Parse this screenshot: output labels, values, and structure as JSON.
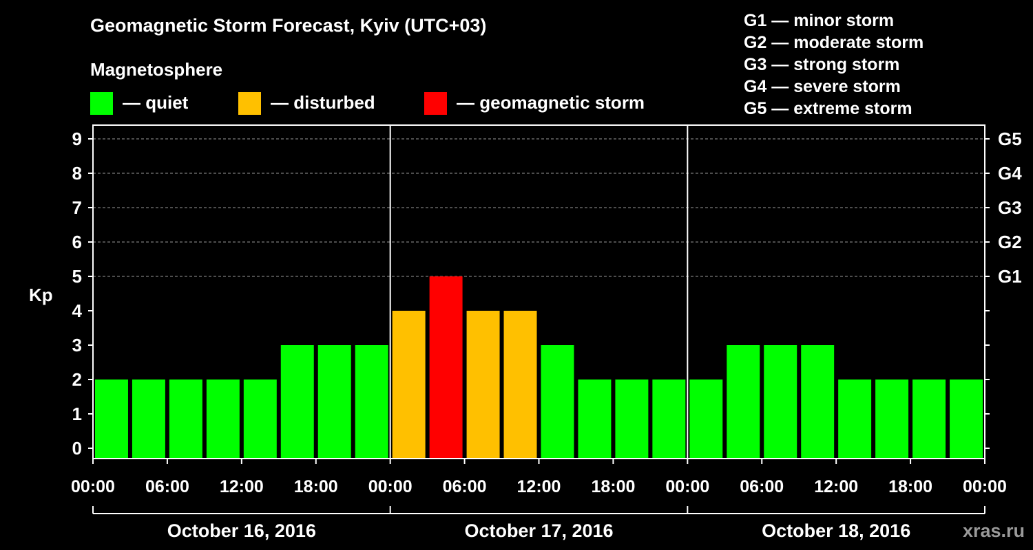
{
  "header": {
    "title": "Geomagnetic Storm Forecast, Kyiv (UTC+03)",
    "subtitle": "Magnetosphere"
  },
  "legend": [
    {
      "label": "— quiet",
      "color": "#00ff00"
    },
    {
      "label": "— disturbed",
      "color": "#ffc000"
    },
    {
      "label": "— geomagnetic storm",
      "color": "#ff0000"
    }
  ],
  "storm_scale": [
    "G1 — minor storm",
    "G2 — moderate storm",
    "G3 — strong storm",
    "G4 — severe storm",
    "G5 — extreme storm"
  ],
  "watermark": "xras.ru",
  "chart_data": {
    "type": "bar",
    "ylabel": "Kp",
    "ylim": [
      0,
      9
    ],
    "y_ticks": [
      "0",
      "1",
      "2",
      "3",
      "4",
      "5",
      "6",
      "7",
      "8",
      "9"
    ],
    "right_axis_ticks": [
      {
        "kp": 5,
        "label": "G1"
      },
      {
        "kp": 6,
        "label": "G2"
      },
      {
        "kp": 7,
        "label": "G3"
      },
      {
        "kp": 8,
        "label": "G4"
      },
      {
        "kp": 9,
        "label": "G5"
      }
    ],
    "grid": "dashed horizontal at Kp 5-9",
    "x_tick_labels": [
      "00:00",
      "06:00",
      "12:00",
      "18:00",
      "00:00",
      "06:00",
      "12:00",
      "18:00",
      "00:00",
      "06:00",
      "12:00",
      "18:00",
      "00:00"
    ],
    "days": [
      "October 16, 2016",
      "October 17, 2016",
      "October 18, 2016"
    ],
    "intervals_per_day": 8,
    "interval_hours": 3,
    "values": [
      2,
      2,
      2,
      2,
      2,
      3,
      3,
      3,
      4,
      5,
      4,
      4,
      3,
      2,
      2,
      2,
      2,
      3,
      3,
      3,
      2,
      2,
      2,
      2
    ],
    "colors": {
      "quiet": "#00ff00",
      "disturbed": "#ffc000",
      "storm": "#ff0000"
    },
    "thresholds": {
      "disturbed_from": 4,
      "storm_from": 5
    }
  }
}
